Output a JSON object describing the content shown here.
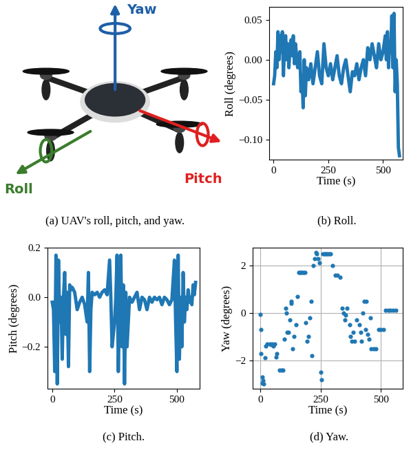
{
  "diagram": {
    "caption": "(a) UAV's roll, pitch, and yaw.",
    "axes": [
      {
        "label": "Yaw",
        "color": "#1f5fa8"
      },
      {
        "label": "Roll",
        "color": "#3a7d2c"
      },
      {
        "label": "Pitch",
        "color": "#e02020"
      }
    ]
  },
  "chart_data": [
    {
      "type": "line",
      "caption": "(b) Roll.",
      "x_label": "Time (s)",
      "y_label": "Roll (degrees)",
      "color": "#1f77b4",
      "grid": false,
      "x": [
        0,
        5,
        10,
        15,
        20,
        25,
        30,
        35,
        40,
        45,
        50,
        55,
        60,
        65,
        70,
        75,
        80,
        85,
        90,
        95,
        100,
        110,
        120,
        125,
        130,
        135,
        140,
        145,
        150,
        160,
        170,
        180,
        190,
        200,
        210,
        220,
        230,
        240,
        250,
        260,
        270,
        280,
        290,
        300,
        310,
        320,
        330,
        340,
        350,
        360,
        370,
        380,
        390,
        400,
        410,
        420,
        430,
        440,
        450,
        460,
        470,
        480,
        490,
        500,
        510,
        515,
        520,
        525,
        530,
        535,
        540,
        545,
        550,
        555,
        560,
        565,
        570,
        575
      ],
      "values": [
        -0.03,
        -0.02,
        0.01,
        -0.01,
        0.035,
        0.0,
        0.03,
        0.01,
        0.035,
        -0.02,
        0.02,
        0.03,
        0.0,
        0.02,
        -0.01,
        0.015,
        0.025,
        0.005,
        0.03,
        -0.005,
        0.02,
        -0.01,
        0.01,
        -0.04,
        -0.02,
        -0.06,
        0.0,
        -0.045,
        -0.01,
        -0.025,
        -0.005,
        -0.03,
        -0.01,
        0.01,
        -0.02,
        -0.03,
        0.02,
        -0.01,
        -0.02,
        -0.005,
        -0.025,
        -0.01,
        0.005,
        -0.02,
        -0.03,
        -0.01,
        0.0,
        -0.02,
        -0.04,
        -0.015,
        -0.02,
        -0.005,
        -0.025,
        -0.01,
        0.0,
        -0.02,
        0.015,
        0.0,
        0.02,
        0.005,
        -0.01,
        0.02,
        0.0,
        0.01,
        0.03,
        0.0,
        0.035,
        -0.01,
        0.02,
        0.01,
        0.055,
        -0.01,
        0.058,
        -0.04,
        0.0,
        -0.03,
        -0.11,
        -0.12
      ],
      "xlim": [
        -20,
        590
      ],
      "xticks": [
        0,
        250,
        500
      ],
      "ylim": [
        -0.125,
        0.066
      ],
      "yticks": [
        {
          "value": -0.1,
          "label": "−0.10"
        },
        {
          "value": -0.05,
          "label": "−0.05"
        },
        {
          "value": 0.0,
          "label": "0.00"
        },
        {
          "value": 0.05,
          "label": "0.05"
        }
      ]
    },
    {
      "type": "line",
      "caption": "(c) Pitch.",
      "x_label": "Time (s)",
      "y_label": "Pitch (degrees)",
      "color": "#1f77b4",
      "grid": false,
      "x": [
        0,
        5,
        10,
        15,
        20,
        25,
        30,
        35,
        40,
        45,
        50,
        55,
        60,
        65,
        70,
        75,
        80,
        90,
        100,
        110,
        120,
        130,
        140,
        145,
        150,
        155,
        160,
        170,
        180,
        190,
        200,
        210,
        220,
        230,
        235,
        240,
        250,
        255,
        260,
        265,
        270,
        275,
        280,
        285,
        290,
        295,
        300,
        310,
        320,
        330,
        340,
        350,
        360,
        370,
        380,
        390,
        400,
        410,
        420,
        430,
        440,
        450,
        460,
        470,
        480,
        490,
        495,
        500,
        505,
        510,
        515,
        520,
        525,
        530,
        535,
        540,
        545,
        550,
        555,
        560,
        565,
        570,
        575
      ],
      "values": [
        -0.02,
        -0.05,
        -0.3,
        0.17,
        -0.35,
        0.15,
        -0.1,
        0.0,
        -0.25,
        0.0,
        0.1,
        -0.15,
        0.02,
        -0.28,
        0.05,
        0.03,
        0.04,
        0.02,
        -0.05,
        -0.02,
        0.0,
        -0.03,
        -0.1,
        0.1,
        -0.3,
        -0.05,
        0.02,
        0.01,
        0.02,
        0.0,
        0.02,
        0.03,
        0.01,
        0.15,
        0.0,
        -0.2,
        -0.1,
        0.0,
        0.17,
        -0.3,
        -0.05,
        0.17,
        -0.2,
        0.05,
        -0.35,
        0.02,
        -0.2,
        0.0,
        -0.02,
        0.0,
        0.02,
        -0.05,
        0.0,
        -0.01,
        -0.05,
        0.0,
        -0.02,
        0.0,
        -0.01,
        0.0,
        -0.03,
        0.0,
        -0.01,
        -0.03,
        -0.01,
        0.15,
        -0.1,
        -0.3,
        0.17,
        -0.25,
        0.0,
        -0.2,
        0.1,
        -0.1,
        0.0,
        -0.05,
        0.03,
        -0.02,
        0.0,
        -0.03,
        0.05,
        0.01,
        0.06
      ],
      "xlim": [
        -20,
        590
      ],
      "xticks": [
        0,
        250,
        500
      ],
      "ylim": [
        -0.37,
        0.2
      ],
      "yticks": [
        {
          "value": -0.2,
          "label": "−0.2"
        },
        0.0,
        0.2
      ]
    },
    {
      "type": "scatter",
      "caption": "(d) Yaw.",
      "x_label": "Time (s)",
      "y_label": "Yaw (degrees)",
      "color": "#1f77b4",
      "marker": "o",
      "grid": true,
      "x": [
        0,
        3,
        5,
        8,
        10,
        12,
        15,
        20,
        25,
        30,
        40,
        45,
        50,
        55,
        60,
        65,
        70,
        80,
        90,
        95,
        100,
        105,
        108,
        112,
        118,
        122,
        128,
        130,
        135,
        140,
        150,
        155,
        160,
        165,
        170,
        175,
        180,
        185,
        190,
        195,
        200,
        205,
        210,
        215,
        220,
        225,
        230,
        235,
        240,
        245,
        250,
        255,
        260,
        265,
        270,
        275,
        280,
        285,
        290,
        300,
        310,
        320,
        330,
        340,
        345,
        350,
        355,
        360,
        370,
        375,
        380,
        385,
        390,
        400,
        410,
        415,
        420,
        425,
        430,
        435,
        440,
        445,
        450,
        455,
        460,
        470,
        480,
        490,
        500,
        510,
        520,
        530,
        540,
        550,
        560
      ],
      "values": [
        -0.05,
        -0.7,
        -1.7,
        -2.7,
        -2.95,
        -2.85,
        -3.0,
        -1.9,
        -1.4,
        -1.3,
        -1.3,
        -1.35,
        -1.3,
        -1.4,
        -1.3,
        -1.85,
        -1.7,
        -2.4,
        -2.4,
        -2.4,
        -1.1,
        0.2,
        0.0,
        -0.8,
        -0.8,
        -0.3,
        0.5,
        0.4,
        -1.5,
        -1.0,
        -0.5,
        0.7,
        1.7,
        1.7,
        1.7,
        1.7,
        1.7,
        1.7,
        -0.4,
        -1.2,
        -1.0,
        -0.2,
        0.5,
        -1.8,
        2.0,
        2.3,
        2.55,
        2.5,
        2.3,
        2.1,
        -2.5,
        -2.8,
        2.5,
        2.5,
        2.5,
        2.5,
        2.5,
        2.5,
        2.5,
        2.0,
        1.6,
        1.6,
        1.5,
        0.2,
        0.0,
        -0.3,
        -0.1,
        0.2,
        -0.5,
        -1.0,
        -1.2,
        -0.8,
        -1.2,
        -0.3,
        -0.5,
        -0.8,
        -1.2,
        0.0,
        0.5,
        -0.7,
        0.5,
        -0.9,
        -1.1,
        -0.2,
        -1.5,
        -1.5,
        -1.5,
        -0.7,
        -0.7,
        -0.7,
        0.1,
        0.1,
        0.1,
        0.1,
        0.1
      ],
      "xlim": [
        -30,
        590
      ],
      "xticks": [
        0,
        250,
        500
      ],
      "ylim": [
        -3.2,
        2.75
      ],
      "yticks": [
        {
          "value": -2,
          "label": "−2"
        },
        0,
        2
      ]
    }
  ]
}
